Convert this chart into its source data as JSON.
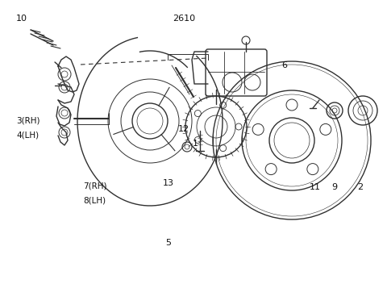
{
  "bg_color": "#ffffff",
  "line_color": "#303030",
  "text_color": "#111111",
  "fig_width": 4.8,
  "fig_height": 3.52,
  "dpi": 100,
  "labels": {
    "10": [
      0.055,
      0.935,
      8
    ],
    "2610": [
      0.475,
      0.935,
      8
    ],
    "3(RH)": [
      0.072,
      0.575,
      7.5
    ],
    "4(LH)": [
      0.072,
      0.525,
      7.5
    ],
    "12": [
      0.475,
      0.545,
      8
    ],
    "1": [
      0.505,
      0.495,
      8
    ],
    "13": [
      0.435,
      0.355,
      8
    ],
    "5": [
      0.435,
      0.145,
      8
    ],
    "7(RH)": [
      0.245,
      0.345,
      7.5
    ],
    "8(LH)": [
      0.245,
      0.295,
      7.5
    ],
    "6": [
      0.735,
      0.77,
      8
    ],
    "11": [
      0.815,
      0.34,
      8
    ],
    "9": [
      0.865,
      0.34,
      8
    ],
    "2": [
      0.93,
      0.34,
      8
    ]
  }
}
